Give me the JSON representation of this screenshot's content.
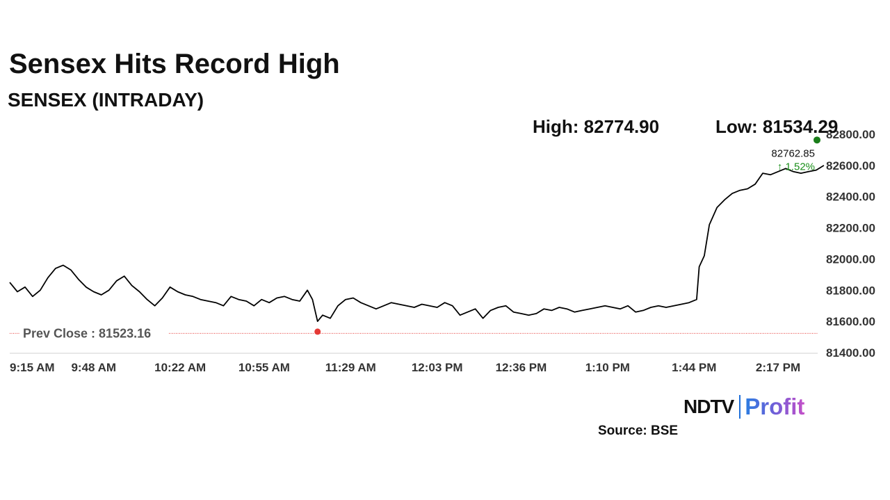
{
  "header": {
    "title": "Sensex Hits Record High",
    "subtitle": "SENSEX (INTRADAY)",
    "high": "High: 82774.90",
    "low": "Low: 81534.29"
  },
  "chart_data": {
    "type": "line",
    "series": [
      {
        "points": [
          [
            "9:15 AM",
            81850
          ],
          [
            "9:18 AM",
            81790
          ],
          [
            "9:21 AM",
            81820
          ],
          [
            "9:24 AM",
            81760
          ],
          [
            "9:27 AM",
            81800
          ],
          [
            "9:30 AM",
            81880
          ],
          [
            "9:33 AM",
            81940
          ],
          [
            "9:36 AM",
            81960
          ],
          [
            "9:39 AM",
            81930
          ],
          [
            "9:42 AM",
            81870
          ],
          [
            "9:45 AM",
            81820
          ],
          [
            "9:48 AM",
            81790
          ],
          [
            "9:51 AM",
            81770
          ],
          [
            "9:54 AM",
            81800
          ],
          [
            "9:57 AM",
            81860
          ],
          [
            "10:00 AM",
            81890
          ],
          [
            "10:03 AM",
            81830
          ],
          [
            "10:06 AM",
            81790
          ],
          [
            "10:09 AM",
            81740
          ],
          [
            "10:12 AM",
            81700
          ],
          [
            "10:15 AM",
            81750
          ],
          [
            "10:18 AM",
            81820
          ],
          [
            "10:21 AM",
            81790
          ],
          [
            "10:24 AM",
            81770
          ],
          [
            "10:27 AM",
            81760
          ],
          [
            "10:30 AM",
            81740
          ],
          [
            "10:33 AM",
            81730
          ],
          [
            "10:36 AM",
            81720
          ],
          [
            "10:39 AM",
            81700
          ],
          [
            "10:42 AM",
            81760
          ],
          [
            "10:45 AM",
            81740
          ],
          [
            "10:48 AM",
            81730
          ],
          [
            "10:51 AM",
            81700
          ],
          [
            "10:54 AM",
            81740
          ],
          [
            "10:57 AM",
            81720
          ],
          [
            "11:00 AM",
            81750
          ],
          [
            "11:03 AM",
            81760
          ],
          [
            "11:06 AM",
            81740
          ],
          [
            "11:09 AM",
            81730
          ],
          [
            "11:12 AM",
            81800
          ],
          [
            "11:14 AM",
            81740
          ],
          [
            "11:16 AM",
            81600
          ],
          [
            "11:18 AM",
            81640
          ],
          [
            "11:21 AM",
            81620
          ],
          [
            "11:24 AM",
            81700
          ],
          [
            "11:27 AM",
            81740
          ],
          [
            "11:30 AM",
            81750
          ],
          [
            "11:33 AM",
            81720
          ],
          [
            "11:36 AM",
            81700
          ],
          [
            "11:39 AM",
            81680
          ],
          [
            "11:42 AM",
            81700
          ],
          [
            "11:45 AM",
            81720
          ],
          [
            "11:48 AM",
            81710
          ],
          [
            "11:51 AM",
            81700
          ],
          [
            "11:54 AM",
            81690
          ],
          [
            "11:57 AM",
            81710
          ],
          [
            "12:00 PM",
            81700
          ],
          [
            "12:03 PM",
            81690
          ],
          [
            "12:06 PM",
            81720
          ],
          [
            "12:09 PM",
            81700
          ],
          [
            "12:12 PM",
            81640
          ],
          [
            "12:15 PM",
            81660
          ],
          [
            "12:18 PM",
            81680
          ],
          [
            "12:21 PM",
            81620
          ],
          [
            "12:24 PM",
            81670
          ],
          [
            "12:27 PM",
            81690
          ],
          [
            "12:30 PM",
            81700
          ],
          [
            "12:33 PM",
            81660
          ],
          [
            "12:36 PM",
            81650
          ],
          [
            "12:39 PM",
            81640
          ],
          [
            "12:42 PM",
            81650
          ],
          [
            "12:45 PM",
            81680
          ],
          [
            "12:48 PM",
            81670
          ],
          [
            "12:51 PM",
            81690
          ],
          [
            "12:54 PM",
            81680
          ],
          [
            "12:57 PM",
            81660
          ],
          [
            "1:00 PM",
            81670
          ],
          [
            "1:03 PM",
            81680
          ],
          [
            "1:06 PM",
            81690
          ],
          [
            "1:09 PM",
            81700
          ],
          [
            "1:12 PM",
            81690
          ],
          [
            "1:15 PM",
            81680
          ],
          [
            "1:18 PM",
            81700
          ],
          [
            "1:21 PM",
            81660
          ],
          [
            "1:24 PM",
            81670
          ],
          [
            "1:27 PM",
            81690
          ],
          [
            "1:30 PM",
            81700
          ],
          [
            "1:33 PM",
            81690
          ],
          [
            "1:36 PM",
            81700
          ],
          [
            "1:39 PM",
            81710
          ],
          [
            "1:42 PM",
            81720
          ],
          [
            "1:45 PM",
            81740
          ],
          [
            "1:46 PM",
            81950
          ],
          [
            "1:48 PM",
            82020
          ],
          [
            "1:50 PM",
            82220
          ],
          [
            "1:53 PM",
            82330
          ],
          [
            "1:56 PM",
            82380
          ],
          [
            "1:59 PM",
            82420
          ],
          [
            "2:02 PM",
            82440
          ],
          [
            "2:05 PM",
            82450
          ],
          [
            "2:08 PM",
            82480
          ],
          [
            "2:11 PM",
            82550
          ],
          [
            "2:14 PM",
            82540
          ],
          [
            "2:17 PM",
            82560
          ],
          [
            "2:20 PM",
            82580
          ],
          [
            "2:23 PM",
            82560
          ],
          [
            "2:26 PM",
            82550
          ],
          [
            "2:29 PM",
            82560
          ],
          [
            "2:32 PM",
            82570
          ],
          [
            "2:35 PM",
            82600
          ]
        ]
      }
    ],
    "x_ticks": [
      "9:15 AM",
      "9:48 AM",
      "10:22 AM",
      "10:55 AM",
      "11:29 AM",
      "12:03 PM",
      "12:36 PM",
      "1:10 PM",
      "1:44 PM",
      "2:17 PM"
    ],
    "y_ticks": [
      "81400.00",
      "81600.00",
      "81800.00",
      "82000.00",
      "82200.00",
      "82400.00",
      "82600.00",
      "82800.00"
    ],
    "ylim": [
      81400,
      82800
    ],
    "reference_line": {
      "label": "Prev Close : 81523.16",
      "value": 81523.16
    },
    "last_value": {
      "label": "82762.85",
      "change": "↑ 1.52%",
      "value": 82762.85
    },
    "day_low_point": {
      "time": "11:16 AM",
      "value": 81534.29
    },
    "grid": false,
    "colors": {
      "line": "#000000",
      "prev_close": "#e53935",
      "change": "#1a8f1a",
      "low_marker": "#e53935",
      "last_marker": "#1a7d1a"
    }
  },
  "footer": {
    "logo_ndtv": "NDTV",
    "logo_profit": "Profit",
    "source": "Source: BSE"
  }
}
